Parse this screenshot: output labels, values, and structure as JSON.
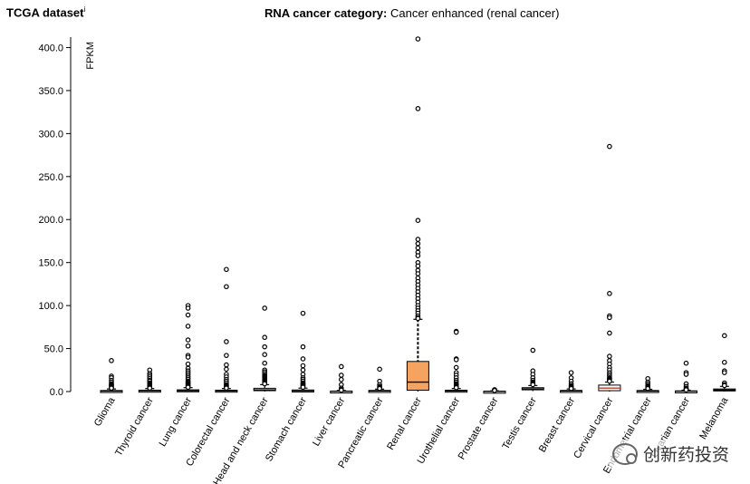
{
  "header": {
    "dataset_label": "TCGA dataset",
    "info_marker": "i",
    "category_label": "RNA cancer category:",
    "category_value": "Cancer enhanced (renal cancer)"
  },
  "chart_data": {
    "type": "box",
    "title": "RNA cancer category: Cancer enhanced (renal cancer)",
    "ylabel": "FPKM",
    "xlabel": "",
    "ylim": [
      0,
      410
    ],
    "yticks": [
      "0.0",
      "50.0",
      "100.0",
      "150.0",
      "200.0",
      "250.0",
      "300.0",
      "350.0",
      "400.0"
    ],
    "ytick_values": [
      0,
      50,
      100,
      150,
      200,
      250,
      300,
      350,
      400
    ],
    "colors": {
      "highlight": "#f4a460",
      "default": "#ffffff",
      "cervical_median": "#c0392b"
    },
    "categories": [
      "Glioma",
      "Thyroid cancer",
      "Lung cancer",
      "Colorectal cancer",
      "Head and neck cancer",
      "Stomach cancer",
      "Liver cancer",
      "Pancreatic cancer",
      "Renal cancer",
      "Urothelial cancer",
      "Prostate cancer",
      "Testis cancer",
      "Breast cancer",
      "Cervical cancer",
      "Endometrial cancer",
      "Ovarian cancer",
      "Melanoma"
    ],
    "series": [
      {
        "name": "Glioma",
        "q1": 0.2,
        "median": 0.6,
        "q3": 1.2,
        "whisker_low": 0,
        "whisker_high": 3,
        "highlight": false,
        "outliers": [
          36,
          18,
          16,
          13,
          11,
          9,
          8,
          7,
          6,
          5,
          4,
          4
        ]
      },
      {
        "name": "Thyroid cancer",
        "q1": 0.4,
        "median": 0.9,
        "q3": 1.6,
        "whisker_low": 0,
        "whisker_high": 3.5,
        "highlight": false,
        "outliers": [
          25,
          21,
          19,
          17,
          15,
          13,
          12,
          10,
          9,
          8,
          7,
          6,
          5,
          4
        ]
      },
      {
        "name": "Lung cancer",
        "q1": 0.4,
        "median": 1.0,
        "q3": 2.0,
        "whisker_low": 0,
        "whisker_high": 4.5,
        "highlight": false,
        "outliers": [
          100,
          97,
          89,
          76,
          60,
          53,
          42,
          40,
          32,
          27,
          24,
          22,
          20,
          18,
          16,
          14,
          12,
          11,
          10,
          9,
          8,
          7,
          6,
          5
        ]
      },
      {
        "name": "Colorectal cancer",
        "q1": 0.3,
        "median": 0.8,
        "q3": 1.6,
        "whisker_low": 0,
        "whisker_high": 3.5,
        "highlight": false,
        "outliers": [
          142,
          122,
          58,
          42,
          31,
          26,
          20,
          17,
          14,
          12,
          10,
          8,
          7,
          6,
          5,
          4
        ]
      },
      {
        "name": "Head and neck cancer",
        "q1": 1.0,
        "median": 2.0,
        "q3": 3.8,
        "whisker_low": 0,
        "whisker_high": 8,
        "highlight": false,
        "outliers": [
          97,
          63,
          52,
          43,
          33,
          25,
          23,
          21,
          19,
          18,
          17,
          16,
          15,
          14,
          13,
          12,
          11,
          10,
          9
        ]
      },
      {
        "name": "Stomach cancer",
        "q1": 0.3,
        "median": 0.9,
        "q3": 1.8,
        "whisker_low": 0,
        "whisker_high": 4,
        "highlight": false,
        "outliers": [
          91,
          52,
          38,
          30,
          25,
          20,
          16,
          14,
          12,
          10,
          9,
          8,
          7,
          6,
          5
        ]
      },
      {
        "name": "Liver cancer",
        "q1": 0.1,
        "median": 0.3,
        "q3": 0.6,
        "whisker_low": 0,
        "whisker_high": 1.2,
        "highlight": false,
        "outliers": [
          29,
          19,
          14,
          8,
          4,
          2.5,
          2,
          1.6
        ]
      },
      {
        "name": "Pancreatic cancer",
        "q1": 0.3,
        "median": 0.7,
        "q3": 1.3,
        "whisker_low": 0,
        "whisker_high": 2.8,
        "highlight": false,
        "outliers": [
          26,
          12,
          8,
          6,
          5,
          4,
          3.5
        ]
      },
      {
        "name": "Renal cancer",
        "q1": 1.5,
        "median": 11,
        "q3": 35,
        "whisker_low": 0,
        "whisker_high": 84,
        "highlight": true,
        "outliers": [
          410,
          329,
          199,
          177,
          172,
          167,
          162,
          158,
          150,
          146,
          141,
          137,
          132,
          128,
          124,
          120,
          116,
          112,
          108,
          104,
          100,
          97,
          94,
          91,
          88,
          86,
          85
        ]
      },
      {
        "name": "Urothelial cancer",
        "q1": 0.3,
        "median": 0.8,
        "q3": 1.6,
        "whisker_low": 0,
        "whisker_high": 3.6,
        "highlight": false,
        "outliers": [
          70,
          69,
          38,
          37,
          28,
          22,
          19,
          16,
          13,
          11,
          9,
          8,
          7,
          6,
          5,
          4.5
        ]
      },
      {
        "name": "Prostate cancer",
        "q1": 0.1,
        "median": 0.2,
        "q3": 0.4,
        "whisker_low": 0,
        "whisker_high": 0.8,
        "highlight": false,
        "outliers": [
          2.2,
          1.8,
          1.4,
          1.2
        ]
      },
      {
        "name": "Testis cancer",
        "q1": 2.0,
        "median": 3.0,
        "q3": 4.5,
        "whisker_low": 0.5,
        "whisker_high": 7,
        "highlight": false,
        "outliers": [
          48,
          24,
          20,
          16,
          13,
          11,
          10,
          9,
          8
        ]
      },
      {
        "name": "Breast cancer",
        "q1": 0.3,
        "median": 0.7,
        "q3": 1.3,
        "whisker_low": 0,
        "whisker_high": 3,
        "highlight": false,
        "outliers": [
          22,
          16,
          12,
          9,
          7,
          6,
          5,
          4,
          3.5
        ]
      },
      {
        "name": "Cervical cancer",
        "q1": 1.0,
        "median": 4.0,
        "q3": 7.5,
        "whisker_low": 0,
        "whisker_high": 11,
        "highlight": false,
        "outliers": [
          285,
          114,
          88,
          86,
          68,
          41,
          36,
          32,
          28,
          25,
          22,
          20,
          18,
          16,
          15,
          14,
          13,
          12
        ]
      },
      {
        "name": "Endometrial cancer",
        "q1": 0.2,
        "median": 0.6,
        "q3": 1.2,
        "whisker_low": 0,
        "whisker_high": 2.6,
        "highlight": false,
        "outliers": [
          15,
          11,
          9,
          7,
          6,
          5,
          4,
          3.5
        ]
      },
      {
        "name": "Ovarian cancer",
        "q1": 0.1,
        "median": 0.4,
        "q3": 0.8,
        "whisker_low": 0,
        "whisker_high": 1.6,
        "highlight": false,
        "outliers": [
          33,
          22,
          20,
          9,
          6,
          4,
          3,
          2.5,
          2
        ]
      },
      {
        "name": "Melanoma",
        "q1": 1.0,
        "median": 1.8,
        "q3": 3.0,
        "whisker_low": 0,
        "whisker_high": 6,
        "highlight": false,
        "outliers": [
          65,
          34,
          24,
          22,
          10,
          8,
          7
        ]
      }
    ]
  },
  "watermark": {
    "text": "创新药投资"
  }
}
